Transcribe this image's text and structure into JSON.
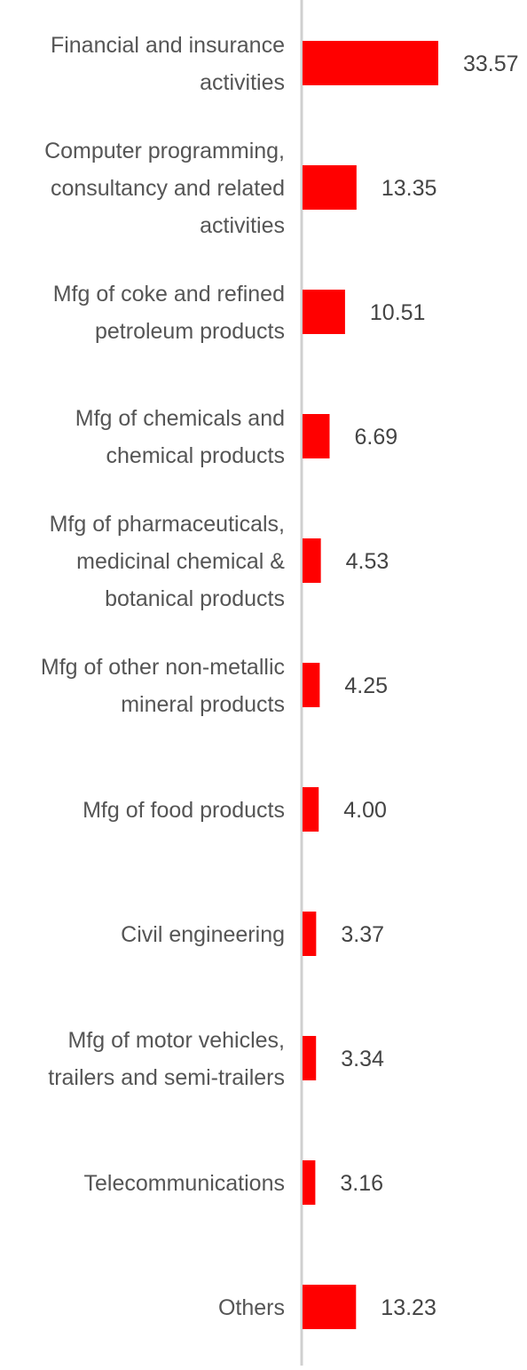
{
  "chart_data": {
    "type": "bar",
    "orientation": "horizontal",
    "title": "",
    "xlabel": "",
    "ylabel": "",
    "bar_color": "#ff0000",
    "axis_color": "#d0d0d0",
    "grid": false,
    "xlim": [
      0,
      35
    ],
    "categories": [
      [
        "Financial and insurance",
        "activities"
      ],
      [
        "Computer programming,",
        "consultancy and related",
        "activities"
      ],
      [
        "Mfg of coke and refined",
        "petroleum products"
      ],
      [
        "Mfg of chemicals and",
        "chemical products"
      ],
      [
        "Mfg of pharmaceuticals,",
        "medicinal chemical &",
        "botanical products"
      ],
      [
        "Mfg of other non-metallic",
        "mineral products"
      ],
      [
        "Mfg of food products"
      ],
      [
        "Civil engineering"
      ],
      [
        "Mfg of motor vehicles,",
        "trailers and semi-trailers"
      ],
      [
        "Telecommunications"
      ],
      [
        "Others"
      ]
    ],
    "values": [
      33.57,
      13.35,
      10.51,
      6.69,
      4.53,
      4.25,
      4.0,
      3.37,
      3.34,
      3.16,
      13.23
    ],
    "value_labels": [
      "33.57",
      "13.35",
      "10.51",
      "6.69",
      "4.53",
      "4.25",
      "4.00",
      "3.37",
      "3.34",
      "3.16",
      "13.23"
    ]
  }
}
